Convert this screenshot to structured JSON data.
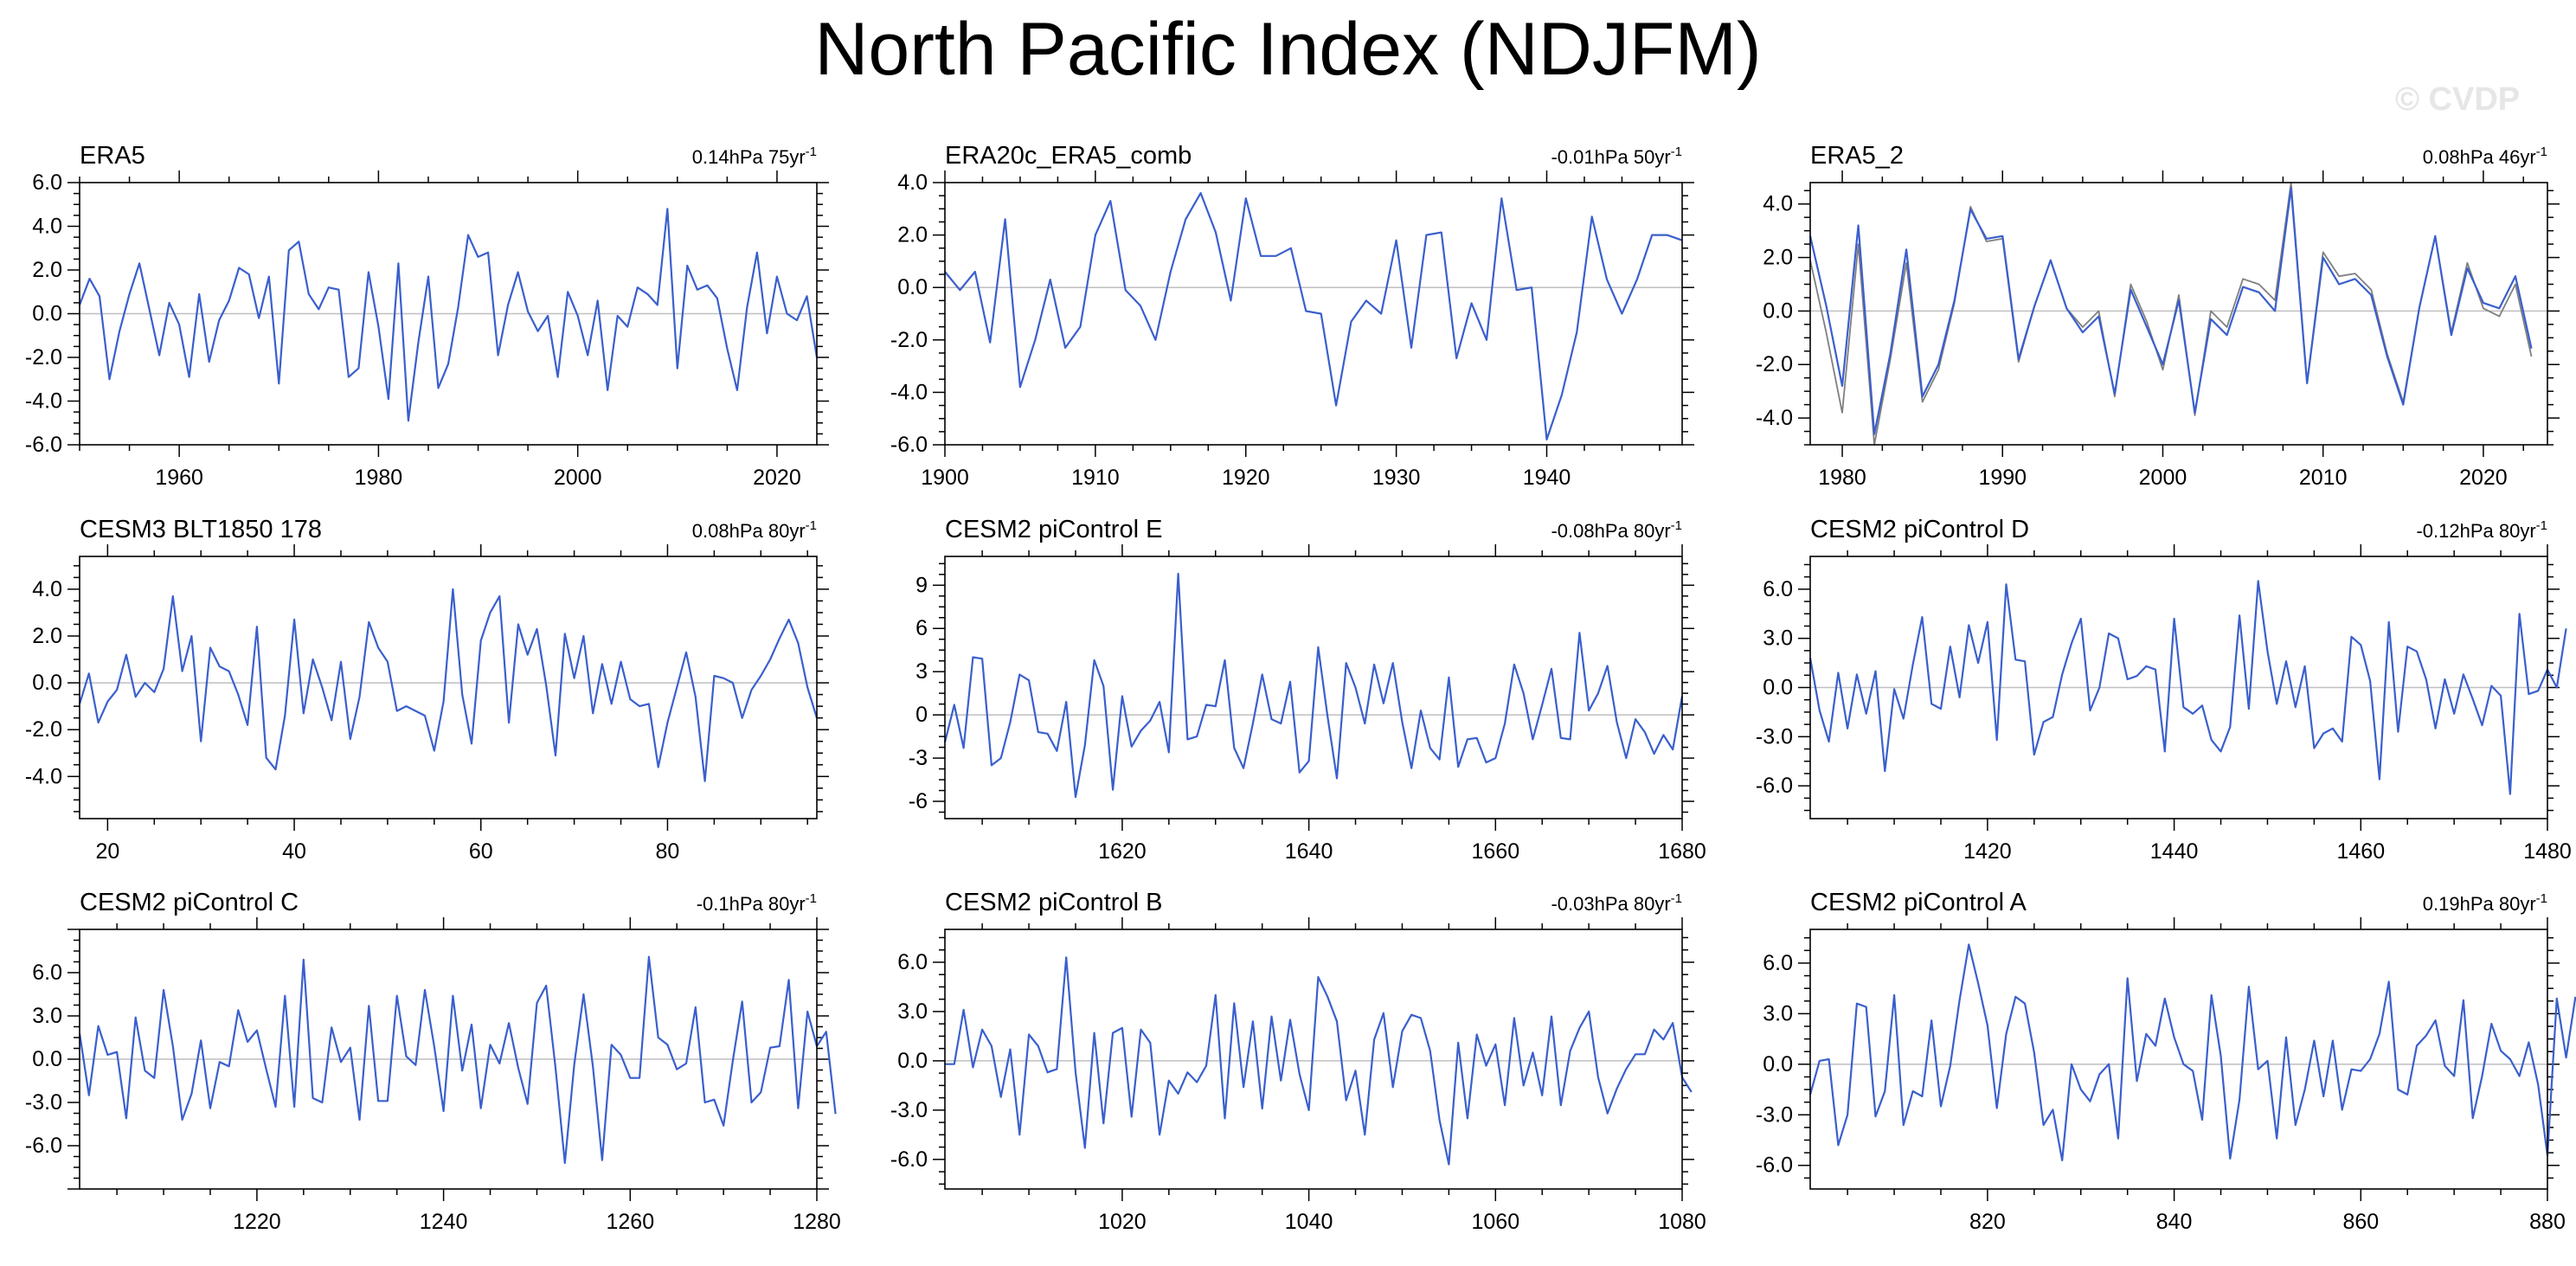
{
  "page": {
    "title": "North Pacific Index (NDJFM)",
    "watermark": "© CVDP",
    "colors": {
      "line": "#3a5fcd",
      "secondary_line": "#7f7f7f",
      "zero_line": "#bfbfbf",
      "axis": "#000000"
    }
  },
  "chart_data": [
    {
      "type": "line",
      "title": "ERA5",
      "trend": {
        "value": "0.14hPa 75yr",
        "exponent": "-1"
      },
      "x_start": 1950,
      "xticks": [
        1960,
        1980,
        2000,
        2020
      ],
      "xlim": [
        1950,
        2024
      ],
      "yticks": [
        6.0,
        4.0,
        2.0,
        0.0,
        -2.0,
        -4.0,
        -6.0
      ],
      "ytick_labels": [
        "6.0",
        "4.0",
        "2.0",
        "0.0",
        "-2.0",
        "-4.0",
        "-6.0"
      ],
      "ylim": [
        -6.0,
        6.0
      ],
      "series": [
        {
          "values": [
            0.4,
            1.6,
            0.8,
            -3.0,
            -0.8,
            0.9,
            2.3,
            0.2,
            -1.9,
            0.5,
            -0.5,
            -2.9,
            0.9,
            -2.2,
            -0.3,
            0.6,
            2.1,
            1.8,
            -0.2,
            1.7,
            -3.2,
            2.9,
            3.3,
            0.9,
            0.2,
            1.2,
            1.1,
            -2.9,
            -2.5,
            1.9,
            -0.6,
            -3.9,
            2.3,
            -4.9,
            -1.3,
            1.7,
            -3.4,
            -2.3,
            0.3,
            3.6,
            2.6,
            2.8,
            -1.9,
            0.4,
            1.9,
            0.1,
            -0.8,
            -0.1,
            -2.9,
            1.0,
            -0.1,
            -1.9,
            0.6,
            -3.5,
            -0.1,
            -0.6,
            1.2,
            0.9,
            0.4,
            4.8,
            -2.5,
            2.2,
            1.1,
            1.3,
            0.7,
            -1.6,
            -3.5,
            0.3,
            2.8,
            -0.9,
            1.7,
            0.0,
            -0.3,
            0.8,
            -2.0
          ]
        }
      ]
    },
    {
      "type": "line",
      "title": "ERA20c_ERA5_comb",
      "trend": {
        "value": "-0.01hPa 50yr",
        "exponent": "-1"
      },
      "x_start": 1900,
      "xticks": [
        1900,
        1910,
        1920,
        1930,
        1940
      ],
      "xlim": [
        1900,
        1949
      ],
      "yticks": [
        4.0,
        2.0,
        0.0,
        -2.0,
        -4.0,
        -6.0
      ],
      "ytick_labels": [
        "4.0",
        "2.0",
        "0.0",
        "-2.0",
        "-4.0",
        "-6.0"
      ],
      "ylim": [
        -6.0,
        4.0
      ],
      "series": [
        {
          "values": [
            0.6,
            -0.1,
            0.6,
            -2.1,
            2.6,
            -3.8,
            -2.0,
            0.3,
            -2.3,
            -1.5,
            2.0,
            3.3,
            -0.1,
            -0.7,
            -2.0,
            0.6,
            2.6,
            3.6,
            2.1,
            -0.5,
            3.4,
            1.2,
            1.2,
            1.5,
            -0.9,
            -1.0,
            -4.5,
            -1.3,
            -0.5,
            -1.0,
            1.8,
            -2.3,
            2.0,
            2.1,
            -2.7,
            -0.6,
            -2.0,
            3.4,
            -0.1,
            0.0,
            -5.8,
            -4.1,
            -1.7,
            2.7,
            0.3,
            -1.0,
            0.3,
            2.0,
            2.0,
            1.8
          ]
        }
      ]
    },
    {
      "type": "line",
      "title": "ERA5_2",
      "trend": {
        "value": "0.08hPa 46yr",
        "exponent": "-1"
      },
      "x_start": 1978,
      "xticks": [
        1980,
        1990,
        2000,
        2010,
        2020
      ],
      "xlim": [
        1978,
        2024
      ],
      "yticks": [
        4.0,
        2.0,
        0.0,
        -2.0,
        -4.0
      ],
      "ytick_labels": [
        "4.0",
        "2.0",
        "0.0",
        "-2.0",
        "-4.0"
      ],
      "ylim": [
        -5.0,
        4.8
      ],
      "series": [
        {
          "values": [
            2.8,
            0.2,
            -2.8,
            3.2,
            -4.6,
            -1.6,
            2.3,
            -3.2,
            -2.0,
            0.4,
            3.8,
            2.7,
            2.8,
            -1.8,
            0.2,
            1.9,
            0.1,
            -0.8,
            -0.2,
            -3.1,
            0.8,
            -0.6,
            -2.0,
            0.4,
            -3.8,
            -0.3,
            -0.9,
            0.9,
            0.7,
            0.0,
            4.6,
            -2.7,
            2.0,
            1.0,
            1.2,
            0.6,
            -1.7,
            -3.5,
            0.1,
            2.8,
            -0.9,
            1.6,
            0.3,
            0.1,
            1.3,
            -1.4
          ]
        },
        {
          "values": [
            1.9,
            -0.8,
            -3.8,
            2.5,
            -5.0,
            -1.8,
            1.8,
            -3.4,
            -2.2,
            0.3,
            3.9,
            2.6,
            2.7,
            -1.9,
            0.2,
            1.9,
            0.1,
            -0.6,
            0.0,
            -3.2,
            1.0,
            -0.4,
            -2.2,
            0.6,
            -3.9,
            0.0,
            -0.6,
            1.2,
            1.0,
            0.4,
            4.8,
            -2.7,
            2.2,
            1.3,
            1.4,
            0.8,
            -1.6,
            -3.4,
            0.1,
            2.8,
            -0.8,
            1.8,
            0.1,
            -0.2,
            1.0,
            -1.7
          ]
        }
      ]
    },
    {
      "type": "line",
      "title": "CESM3 BLT1850 178",
      "trend": {
        "value": "0.08hPa 80yr",
        "exponent": "-1"
      },
      "x_start": 17,
      "xticks": [
        20,
        40,
        60,
        80
      ],
      "xlim": [
        17,
        96
      ],
      "yticks": [
        4.0,
        2.0,
        0.0,
        -2.0,
        -4.0
      ],
      "ytick_labels": [
        "4.0",
        "2.0",
        "0.0",
        "-2.0",
        "-4.0"
      ],
      "ylim": [
        -5.8,
        5.4
      ],
      "series": [
        {
          "values": [
            -0.9,
            0.4,
            -1.7,
            -0.8,
            -0.3,
            1.2,
            -0.6,
            0.0,
            -0.4,
            0.6,
            3.7,
            0.5,
            2.0,
            -2.5,
            1.5,
            0.7,
            0.5,
            -0.5,
            -1.8,
            2.4,
            -3.2,
            -3.7,
            -1.4,
            2.7,
            -1.3,
            1.0,
            -0.2,
            -1.6,
            0.9,
            -2.4,
            -0.6,
            2.6,
            1.5,
            0.9,
            -1.2,
            -1.0,
            -1.2,
            -1.4,
            -2.9,
            -0.8,
            4.0,
            -0.5,
            -2.6,
            1.8,
            3.0,
            3.7,
            -1.7,
            2.5,
            1.2,
            2.3,
            -0.1,
            -3.1,
            2.1,
            0.2,
            2.0,
            -1.3,
            0.8,
            -0.9,
            0.9,
            -0.7,
            -1.0,
            -0.9,
            -3.6,
            -1.7,
            -0.2,
            1.3,
            -0.6,
            -4.2,
            0.3,
            0.2,
            0.0,
            -1.5,
            -0.3,
            0.3,
            1.0,
            1.9,
            2.7,
            1.7,
            -0.2,
            -1.5
          ]
        }
      ]
    },
    {
      "type": "line",
      "title": "CESM2 piControl E",
      "trend": {
        "value": "-0.08hPa 80yr",
        "exponent": "-1"
      },
      "x_start": 1601,
      "xticks": [
        1620,
        1640,
        1660,
        1680
      ],
      "xlim": [
        1601,
        1680
      ],
      "yticks": [
        9,
        6,
        3,
        0,
        -3,
        -6
      ],
      "ytick_labels": [
        "9",
        "6",
        "3",
        "0",
        "-3",
        "-6"
      ],
      "ylim": [
        -7.2,
        11.0
      ],
      "series": [
        {
          "values": [
            -1.9,
            0.7,
            -2.3,
            4.0,
            3.9,
            -3.5,
            -3.0,
            -0.5,
            2.8,
            2.4,
            -1.2,
            -1.3,
            -2.5,
            0.9,
            -5.7,
            -2.1,
            3.8,
            2.0,
            -5.2,
            1.3,
            -2.2,
            -1.1,
            -0.4,
            0.9,
            -2.6,
            9.8,
            -1.7,
            -1.5,
            0.7,
            0.6,
            3.8,
            -2.3,
            -3.7,
            -0.6,
            2.8,
            -0.3,
            -0.6,
            2.3,
            -4.0,
            -3.2,
            4.7,
            -0.1,
            -4.4,
            3.6,
            1.9,
            -0.6,
            3.5,
            0.8,
            3.6,
            -0.5,
            -3.7,
            0.3,
            -2.3,
            -3.1,
            2.6,
            -3.6,
            -1.7,
            -1.6,
            -3.3,
            -3.0,
            -0.6,
            3.5,
            1.5,
            -1.7,
            0.7,
            3.2,
            -1.6,
            -1.7,
            5.7,
            0.3,
            1.5,
            3.4,
            -0.5,
            -3.0,
            -0.3,
            -1.2,
            -2.7,
            -1.4,
            -2.4,
            1.3
          ]
        }
      ]
    },
    {
      "type": "line",
      "title": "CESM2 piControl D",
      "trend": {
        "value": "-0.12hPa 80yr",
        "exponent": "-1"
      },
      "x_start": 1401,
      "xticks": [
        1420,
        1440,
        1460,
        1480
      ],
      "xlim": [
        1401,
        1480
      ],
      "yticks": [
        6.0,
        3.0,
        0.0,
        -3.0,
        -6.0
      ],
      "ytick_labels": [
        "6.0",
        "3.0",
        "0.0",
        "-3.0",
        "-6.0"
      ],
      "ylim": [
        -8.0,
        8.0
      ],
      "series": [
        {
          "values": [
            1.8,
            -1.4,
            -3.3,
            0.9,
            -2.5,
            0.8,
            -1.6,
            1.0,
            -5.1,
            -0.1,
            -1.9,
            1.4,
            4.3,
            -1.0,
            -1.3,
            2.5,
            -0.6,
            3.8,
            1.5,
            4.0,
            -3.2,
            6.3,
            1.7,
            1.6,
            -4.1,
            -2.1,
            -1.8,
            0.8,
            2.7,
            4.2,
            -1.4,
            0.0,
            3.3,
            3.0,
            0.5,
            0.7,
            1.3,
            1.1,
            -3.9,
            4.2,
            -1.2,
            -1.6,
            -1.1,
            -3.2,
            -3.9,
            -2.4,
            4.4,
            -1.3,
            6.5,
            2.2,
            -1.0,
            1.6,
            -1.2,
            1.3,
            -3.7,
            -2.8,
            -2.5,
            -3.3,
            3.1,
            2.6,
            0.4,
            -5.6,
            4.0,
            -2.7,
            2.5,
            2.2,
            0.5,
            -2.5,
            0.5,
            -1.6,
            0.8,
            -0.7,
            -2.3,
            0.1,
            -0.5,
            -6.5,
            4.5,
            -0.4,
            -0.2,
            1.1,
            0.0,
            3.6
          ]
        }
      ]
    },
    {
      "type": "line",
      "title": "CESM2 piControl C",
      "trend": {
        "value": "-0.1hPa 80yr",
        "exponent": "-1"
      },
      "x_start": 1201,
      "xticks": [
        1220,
        1240,
        1260,
        1280
      ],
      "xlim": [
        1201,
        1280
      ],
      "yticks": [
        6.0,
        3.0,
        0.0,
        -3.0,
        -6.0
      ],
      "ytick_labels": [
        "6.0",
        "3.0",
        "0.0",
        "-3.0",
        "-6.0"
      ],
      "ylim": [
        -9.0,
        9.0
      ],
      "series": [
        {
          "values": [
            1.8,
            -2.5,
            2.3,
            0.3,
            0.5,
            -4.1,
            2.9,
            -0.8,
            -1.3,
            4.8,
            0.9,
            -4.2,
            -2.4,
            1.3,
            -3.4,
            -0.2,
            -0.5,
            3.4,
            1.2,
            2.0,
            -0.7,
            -3.3,
            4.4,
            -3.3,
            6.9,
            -2.7,
            -3.0,
            2.2,
            -0.2,
            0.8,
            -4.2,
            3.7,
            -2.9,
            -2.9,
            4.4,
            0.2,
            -0.4,
            4.8,
            0.9,
            -3.6,
            4.4,
            -0.8,
            2.4,
            -3.4,
            1.0,
            -0.3,
            2.5,
            -0.6,
            -3.1,
            3.9,
            5.1,
            -0.6,
            -7.2,
            -0.4,
            4.5,
            -0.5,
            -7.0,
            1.0,
            0.3,
            -1.3,
            -1.3,
            7.1,
            1.5,
            1.0,
            -0.7,
            -0.3,
            3.6,
            -3.0,
            -2.8,
            -4.6,
            -0.1,
            4.0,
            -3.0,
            -2.3,
            0.8,
            0.9,
            5.5,
            -3.4,
            3.3,
            0.9,
            1.9,
            -3.8
          ]
        }
      ]
    },
    {
      "type": "line",
      "title": "CESM2 piControl B",
      "trend": {
        "value": "-0.03hPa 80yr",
        "exponent": "-1"
      },
      "x_start": 1001,
      "xticks": [
        1020,
        1040,
        1060,
        1080
      ],
      "xlim": [
        1001,
        1080
      ],
      "yticks": [
        6.0,
        3.0,
        0.0,
        -3.0,
        -6.0
      ],
      "ytick_labels": [
        "6.0",
        "3.0",
        "0.0",
        "-3.0",
        "-6.0"
      ],
      "ylim": [
        -7.8,
        8.0
      ],
      "series": [
        {
          "values": [
            -0.2,
            -0.2,
            3.1,
            -0.4,
            1.9,
            0.9,
            -2.2,
            0.7,
            -4.5,
            1.6,
            0.9,
            -0.7,
            -0.5,
            6.3,
            -0.7,
            -5.3,
            1.7,
            -3.8,
            1.7,
            2.0,
            -3.4,
            1.9,
            1.1,
            -4.5,
            -1.2,
            -2.0,
            -0.7,
            -1.3,
            -0.3,
            4.0,
            -3.5,
            3.5,
            -1.6,
            2.4,
            -2.9,
            2.7,
            -1.2,
            2.5,
            -0.8,
            -3.0,
            5.1,
            3.9,
            2.4,
            -2.4,
            -0.6,
            -4.5,
            1.3,
            2.9,
            -1.6,
            1.8,
            2.8,
            2.6,
            0.6,
            -3.6,
            -6.3,
            1.1,
            -3.5,
            1.6,
            -0.3,
            1.0,
            -2.7,
            2.6,
            -1.5,
            0.5,
            -2.1,
            2.7,
            -2.7,
            0.6,
            2.0,
            3.0,
            -1.0,
            -3.2,
            -1.7,
            -0.5,
            0.4,
            0.4,
            1.9,
            1.3,
            2.3,
            -1.0,
            -1.9
          ]
        }
      ]
    },
    {
      "type": "line",
      "title": "CESM2 piControl A",
      "trend": {
        "value": "0.19hPa 80yr",
        "exponent": "-1"
      },
      "x_start": 801,
      "xticks": [
        820,
        840,
        860,
        880
      ],
      "xlim": [
        801,
        880
      ],
      "yticks": [
        6.0,
        3.0,
        0.0,
        -3.0,
        -6.0
      ],
      "ytick_labels": [
        "6.0",
        "3.0",
        "0.0",
        "-3.0",
        "-6.0"
      ],
      "ylim": [
        -7.4,
        8.0
      ],
      "series": [
        {
          "values": [
            -1.8,
            0.2,
            0.3,
            -4.8,
            -3.0,
            3.6,
            3.4,
            -3.1,
            -1.6,
            4.1,
            -3.6,
            -1.6,
            -1.9,
            2.6,
            -2.5,
            -0.1,
            3.8,
            7.1,
            4.8,
            2.3,
            -2.6,
            1.8,
            4.0,
            3.6,
            0.7,
            -3.6,
            -2.7,
            -5.7,
            0.0,
            -1.5,
            -2.2,
            -0.6,
            0.0,
            -4.4,
            5.1,
            -1.0,
            1.8,
            1.1,
            3.9,
            1.6,
            0.0,
            -0.4,
            -3.3,
            4.1,
            0.5,
            -5.6,
            -2.1,
            4.6,
            -0.3,
            0.2,
            -4.4,
            1.6,
            -3.6,
            -1.5,
            1.4,
            -1.9,
            1.4,
            -2.7,
            -0.3,
            -0.4,
            0.3,
            1.8,
            4.9,
            -1.5,
            -1.8,
            1.1,
            1.7,
            2.6,
            -0.1,
            -0.7,
            3.8,
            -3.2,
            -0.7,
            2.4,
            0.8,
            0.3,
            -0.7,
            1.3,
            -1.2,
            -5.4,
            3.9,
            0.4,
            4.0
          ]
        }
      ]
    }
  ]
}
